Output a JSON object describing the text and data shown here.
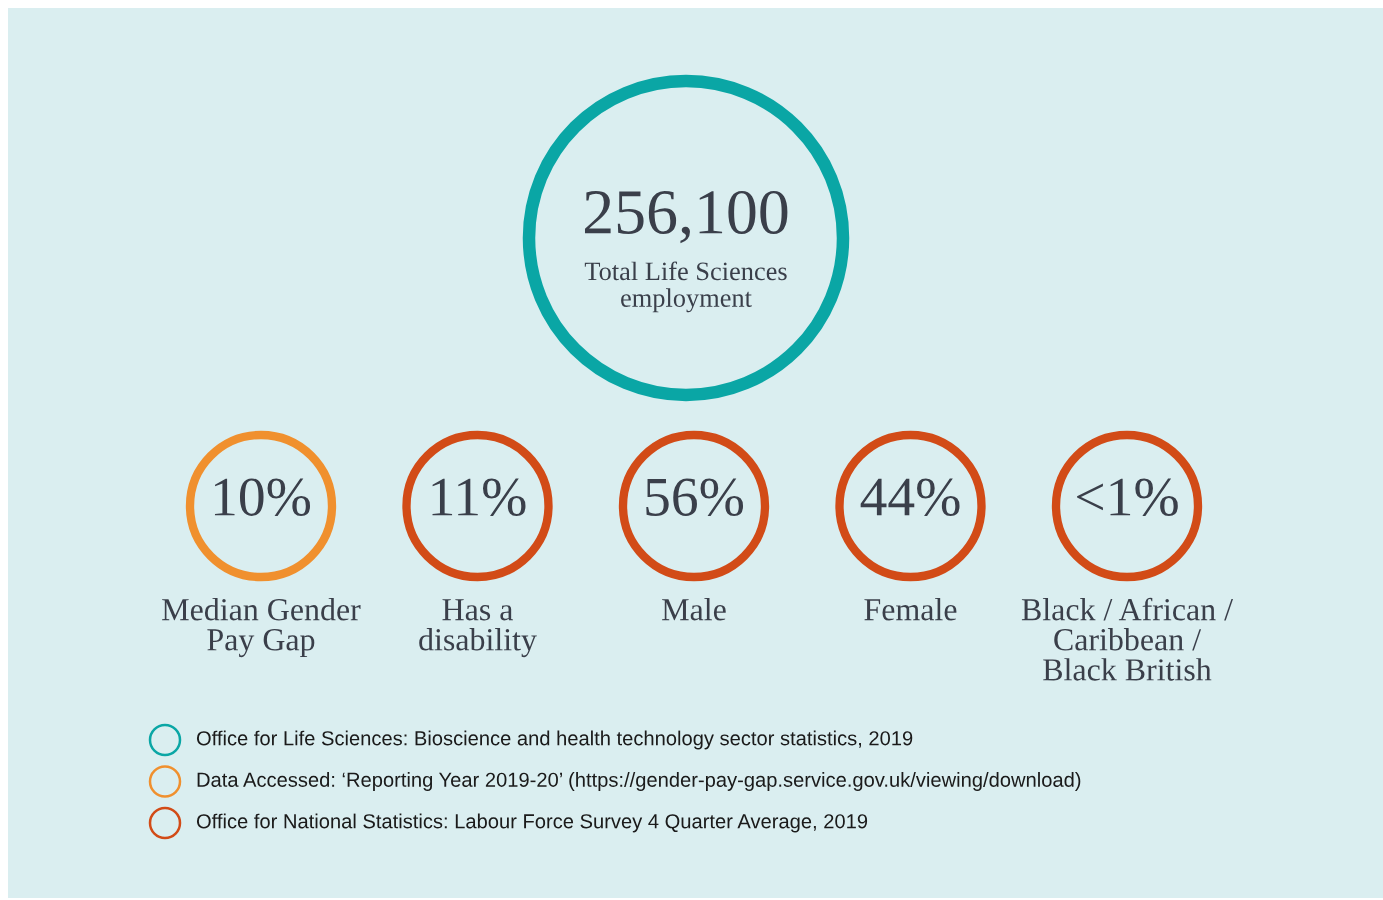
{
  "chart_data": {
    "type": "other",
    "categories": [
      "Total Life Sciences\nemployment",
      "Median Gender\nPay Gap",
      "Has a\ndisability",
      "Male",
      "Female",
      "Black / African /\nCaribbean /\nBlack British"
    ],
    "values": [
      256100,
      10,
      11,
      56,
      44,
      null
    ],
    "value_labels": [
      "256,100",
      "10%",
      "11%",
      "56%",
      "44%",
      "<1%"
    ],
    "colors": [
      "#0aa6a5",
      "#f0902e",
      "#d24b17",
      "#d24b17",
      "#d24b17",
      "#d24b17"
    ],
    "annotations": [
      "Office for Life Sciences: Bioscience and health technology sector statistics, 2019",
      "Data Accessed: ‘Reporting Year 2019-20’ (https://gender-pay-gap.service.gov.uk/viewing/download)",
      "Office for National Statistics: Labour Force Survey 4 Quarter Average, 2019"
    ]
  }
}
